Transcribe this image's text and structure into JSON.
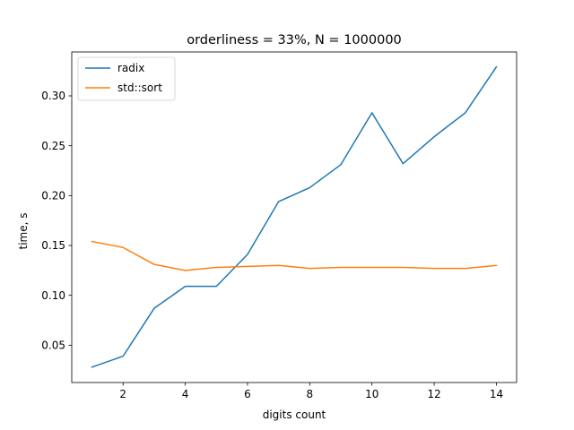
{
  "chart_data": {
    "type": "line",
    "title": "orderliness = 33%, N = 1000000",
    "xlabel": "digits count",
    "ylabel": "time, s",
    "x": [
      1,
      2,
      3,
      4,
      5,
      6,
      7,
      8,
      9,
      10,
      11,
      12,
      13,
      14
    ],
    "xlim": [
      0.35,
      14.65
    ],
    "ylim": [
      0.0126,
      0.344
    ],
    "xticks": [
      2,
      4,
      6,
      8,
      10,
      12,
      14
    ],
    "xtick_labels": [
      "2",
      "4",
      "6",
      "8",
      "10",
      "12",
      "14"
    ],
    "yticks": [
      0.05,
      0.1,
      0.15,
      0.2,
      0.25,
      0.3
    ],
    "ytick_labels": [
      "0.05",
      "0.10",
      "0.15",
      "0.20",
      "0.25",
      "0.30"
    ],
    "grid": false,
    "legend_position": "top-left",
    "series": [
      {
        "name": "radix",
        "color": "#1f77b4",
        "values": [
          0.028,
          0.039,
          0.087,
          0.109,
          0.109,
          0.141,
          0.194,
          0.208,
          0.231,
          0.283,
          0.232,
          0.259,
          0.283,
          0.329
        ]
      },
      {
        "name": "std::sort",
        "color": "#ff7f0e",
        "values": [
          0.154,
          0.148,
          0.131,
          0.125,
          0.128,
          0.129,
          0.13,
          0.127,
          0.128,
          0.128,
          0.128,
          0.127,
          0.127,
          0.13
        ]
      }
    ]
  }
}
